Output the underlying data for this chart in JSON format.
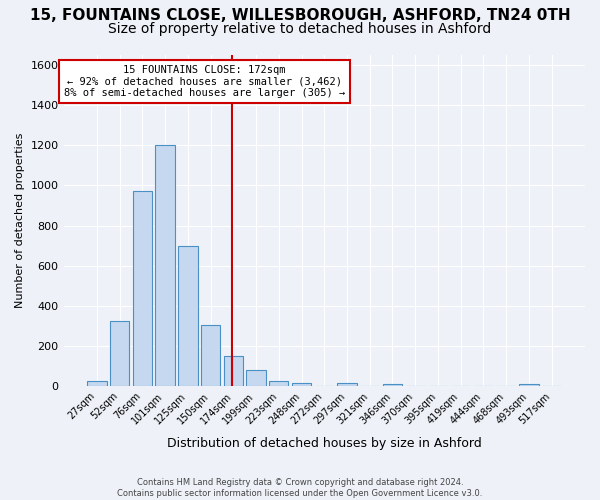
{
  "title": "15, FOUNTAINS CLOSE, WILLESBOROUGH, ASHFORD, TN24 0TH",
  "subtitle": "Size of property relative to detached houses in Ashford",
  "xlabel": "Distribution of detached houses by size in Ashford",
  "ylabel": "Number of detached properties",
  "bar_labels": [
    "27sqm",
    "52sqm",
    "76sqm",
    "101sqm",
    "125sqm",
    "150sqm",
    "174sqm",
    "199sqm",
    "223sqm",
    "248sqm",
    "272sqm",
    "297sqm",
    "321sqm",
    "346sqm",
    "370sqm",
    "395sqm",
    "419sqm",
    "444sqm",
    "468sqm",
    "493sqm",
    "517sqm"
  ],
  "bar_values": [
    25,
    325,
    970,
    1200,
    700,
    305,
    150,
    80,
    25,
    15,
    0,
    15,
    0,
    12,
    0,
    0,
    0,
    0,
    0,
    10,
    0
  ],
  "bar_color": "#c5d8f0",
  "bar_edge_color": "#4a90c4",
  "highlight_label": "15 FOUNTAINS CLOSE: 172sqm",
  "annotation_line1": "← 92% of detached houses are smaller (3,462)",
  "annotation_line2": "8% of semi-detached houses are larger (305) →",
  "vline_color": "#cc0000",
  "annotation_box_color": "#ffffff",
  "annotation_box_edge": "#cc0000",
  "footnote1": "Contains HM Land Registry data © Crown copyright and database right 2024.",
  "footnote2": "Contains public sector information licensed under the Open Government Licence v3.0.",
  "ylim": [
    0,
    1650
  ],
  "bg_color": "#eef2f8",
  "title_fontsize": 11,
  "subtitle_fontsize": 10
}
